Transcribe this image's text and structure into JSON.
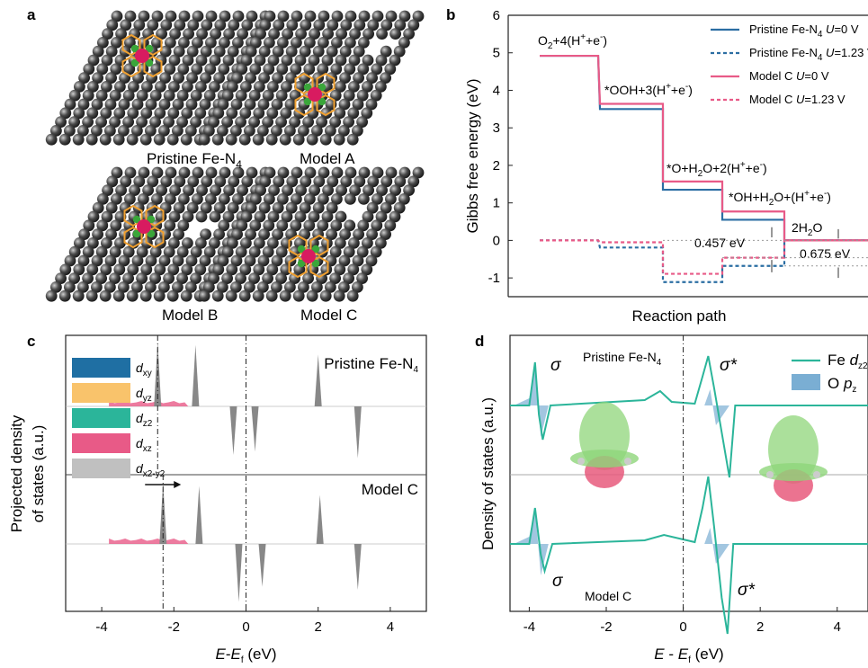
{
  "panel_labels": {
    "a": "a",
    "b": "b",
    "c": "c",
    "d": "d"
  },
  "panel_a": {
    "structures": [
      {
        "label_main": "Pristine Fe-N",
        "label_sub": "4"
      },
      {
        "label_main": "Model A",
        "label_sub": ""
      },
      {
        "label_main": "Model B",
        "label_sub": ""
      },
      {
        "label_main": "Model C",
        "label_sub": ""
      }
    ],
    "colors": {
      "carbon": "#4a4a4a",
      "nitrogen": "#3aa63a",
      "iron": "#d81b60",
      "ring": "#f0a030"
    }
  },
  "chart_data": [
    {
      "type": "line",
      "panel": "b",
      "ylabel": "Gibbs free energy (eV)",
      "xlabel": "Reaction path",
      "ylim": [
        -1.5,
        6
      ],
      "yticks": [
        -1,
        0,
        1,
        2,
        3,
        4,
        5,
        6
      ],
      "steps": 5,
      "series": [
        {
          "name": "Pristine Fe-N4 U=0 V",
          "values": [
            4.92,
            3.5,
            1.35,
            0.55,
            0.0
          ],
          "color": "#2b6ea3",
          "dash": false
        },
        {
          "name": "Pristine Fe-N4 U=1.23 V",
          "values": [
            0.0,
            -0.19,
            -1.11,
            -0.68,
            0.0
          ],
          "color": "#2b6ea3",
          "dash": true
        },
        {
          "name": "Model C U=0 V",
          "values": [
            4.92,
            3.64,
            1.57,
            0.77,
            0.0
          ],
          "color": "#e85a87",
          "dash": false
        },
        {
          "name": "Model C U=1.23 V",
          "values": [
            0.0,
            -0.05,
            -0.89,
            -0.46,
            0.0
          ],
          "color": "#e85a87",
          "dash": true
        }
      ],
      "legend": [
        {
          "main": "Pristine Fe-N",
          "sub": "4",
          "u": "U",
          "rest": "=0 V"
        },
        {
          "main": "Pristine Fe-N",
          "sub": "4",
          "u": "U",
          "rest": "=1.23 V"
        },
        {
          "main": "Model C ",
          "sub": "",
          "u": "U",
          "rest": "=0 V"
        },
        {
          "main": "Model C ",
          "sub": "",
          "u": "U",
          "rest": "=1.23 V"
        }
      ],
      "annotations": {
        "step0": "O2+4(H++e-)",
        "step1": "*OOH+3(H++e-)",
        "step2": "*O+H2O+2(H++e-)",
        "step3": "*OH+H2O+(H++e-)",
        "step4": "2H2O",
        "gap1": "0.457 eV",
        "gap2": "0.675 eV"
      }
    },
    {
      "type": "area",
      "panel": "c",
      "ylabel_line1": "Projected density",
      "ylabel_line2": "of states (a.u.)",
      "xlabel": "E-Ef (eV)",
      "xlim": [
        -5,
        5
      ],
      "xticks": [
        -4,
        -2,
        0,
        2,
        4
      ],
      "subplots": [
        {
          "title": "Pristine Fe-N",
          "title_sub": "4",
          "peaks_up": [
            {
              "orbital": "dz2",
              "x": -2.45,
              "h": 1.0
            },
            {
              "orbital": "dxy",
              "x": -1.4,
              "h": 0.95
            },
            {
              "orbital": "dx2-y2",
              "x": 2.0,
              "h": 0.8
            }
          ],
          "peaks_down": [
            {
              "orbital": "dxy",
              "x": -0.35,
              "h": 0.75
            },
            {
              "orbital": "dz2",
              "x": 0.25,
              "h": 0.7
            },
            {
              "orbital": "dx2-y2",
              "x": 3.1,
              "h": 0.8
            }
          ]
        },
        {
          "title": "Model C",
          "title_sub": "",
          "peaks_up": [
            {
              "orbital": "dz2",
              "x": -2.3,
              "h": 1.0
            },
            {
              "orbital": "dxy",
              "x": -1.3,
              "h": 0.95
            },
            {
              "orbital": "dx2-y2",
              "x": 2.05,
              "h": 0.8
            }
          ],
          "peaks_down": [
            {
              "orbital": "dxy",
              "x": -0.2,
              "h": 0.95
            },
            {
              "orbital": "dz2",
              "x": 0.45,
              "h": 0.7
            },
            {
              "orbital": "dx2-y2",
              "x": 3.1,
              "h": 0.75
            }
          ]
        }
      ],
      "legend": [
        {
          "main": "d",
          "sub": "xy",
          "color": "#1f6fa3"
        },
        {
          "main": "d",
          "sub": "yz",
          "color": "#f9c36b"
        },
        {
          "main": "d",
          "sub": "z2",
          "color": "#2bb59a"
        },
        {
          "main": "d",
          "sub": "xz",
          "color": "#e85a87"
        },
        {
          "main": "d",
          "sub": "x2-y2",
          "color": "#c0c0c0"
        }
      ]
    },
    {
      "type": "line",
      "panel": "d",
      "ylabel": "Density of states (a.u.)",
      "xlabel": "E - Ef (eV)",
      "xlim": [
        -4.5,
        4.8
      ],
      "xticks": [
        -4,
        -2,
        0,
        2,
        4
      ],
      "series": [
        {
          "name": "Fe dz2",
          "color": "#2bb59a"
        },
        {
          "name": "O pz",
          "color": "#7aaed3"
        }
      ],
      "legend": [
        {
          "main": "Fe ",
          "sub": "z2",
          "italic": "d"
        },
        {
          "main": "O ",
          "sub": "z",
          "italic": "p"
        }
      ],
      "subplots": [
        {
          "title": "Pristine Fe-N",
          "title_sub": "4",
          "sigma": "σ",
          "sigma_star": "σ*"
        },
        {
          "title": "Model C",
          "title_sub": "",
          "sigma": "σ",
          "sigma_star": "σ*"
        }
      ]
    }
  ]
}
